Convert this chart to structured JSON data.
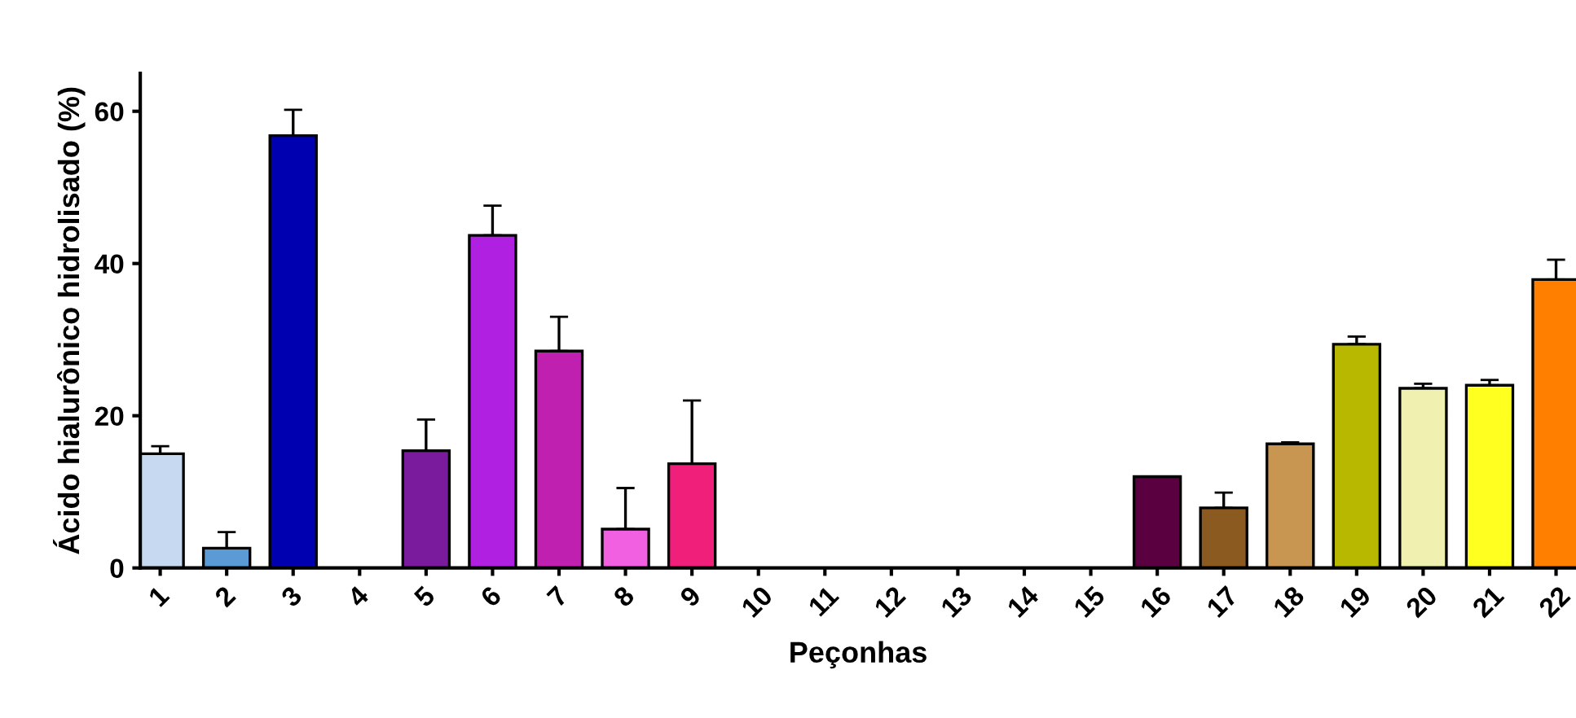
{
  "chart_data": {
    "type": "bar",
    "xlabel": "Peçonhas",
    "ylabel": "Ácido hialurônico hidrolisado (%)",
    "categories": [
      "1",
      "2",
      "3",
      "4",
      "5",
      "6",
      "7",
      "8",
      "9",
      "10",
      "11",
      "12",
      "13",
      "14",
      "15",
      "16",
      "17",
      "18",
      "19",
      "20",
      "21",
      "22"
    ],
    "values": [
      15,
      2.6,
      56.8,
      0,
      15.4,
      43.7,
      28.5,
      5.1,
      13.7,
      0,
      0,
      0,
      0,
      0,
      0,
      12,
      7.9,
      16.3,
      29.4,
      23.6,
      24,
      37.9
    ],
    "errors": [
      [
        15,
        16
      ],
      [
        2.6,
        4.7
      ],
      [
        56.8,
        60.2
      ],
      null,
      [
        15.4,
        19.5
      ],
      [
        43.7,
        47.6
      ],
      [
        28.5,
        33
      ],
      [
        5.1,
        10.5
      ],
      [
        13.7,
        22
      ],
      null,
      null,
      null,
      null,
      null,
      null,
      null,
      [
        7.9,
        9.9
      ],
      [
        16.3,
        16.5
      ],
      [
        29.4,
        30.4
      ],
      [
        23.6,
        24.2
      ],
      [
        24,
        24.7
      ],
      [
        37.9,
        40.5
      ]
    ],
    "colors": [
      "#c6d9f1",
      "#5b9bd5",
      "#0000b0",
      null,
      "#7a1a9c",
      "#b020e0",
      "#c020b0",
      "#f060e0",
      "#f0207a",
      null,
      null,
      null,
      null,
      null,
      null,
      "#5a0040",
      "#8b5a20",
      "#c89650",
      "#b8b800",
      "#f0f0b0",
      "#ffff20",
      "#ff8000"
    ],
    "ylim": [
      0,
      65
    ],
    "yticks": [
      0,
      20,
      40,
      60
    ],
    "grid": false,
    "legend": false
  }
}
